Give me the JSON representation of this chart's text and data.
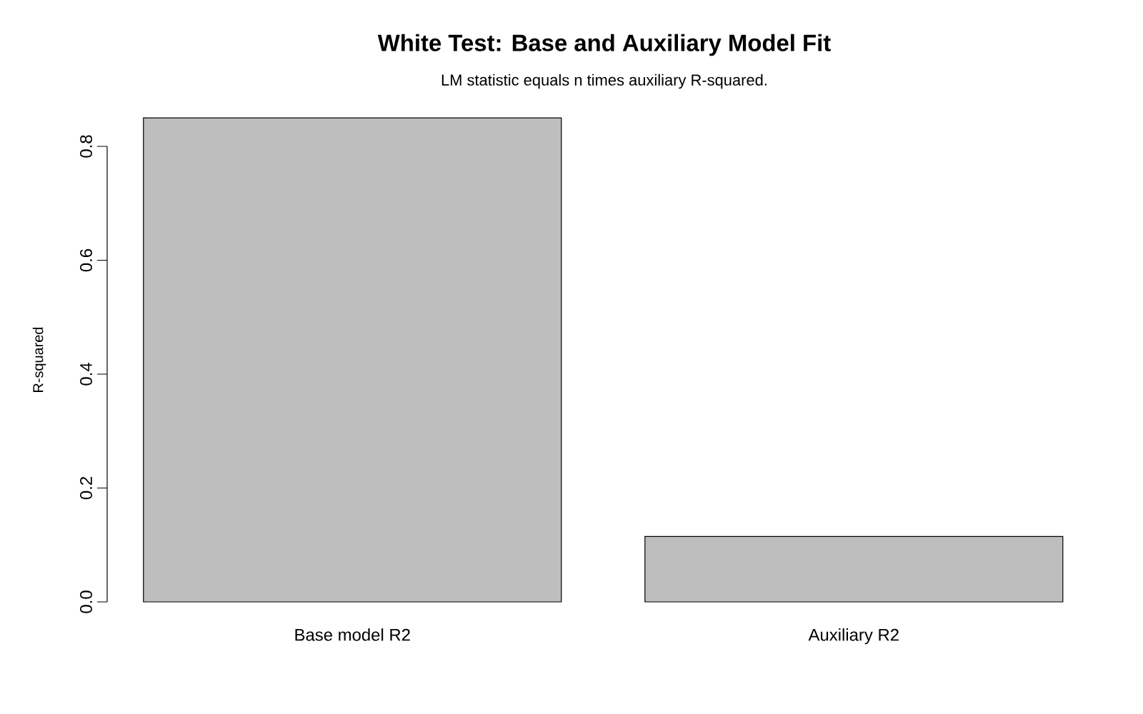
{
  "chart_data": {
    "type": "bar",
    "title": "White Test: Base and Auxiliary Model Fit",
    "subtitle": "LM statistic equals n times auxiliary R-squared.",
    "ylabel": "R-squared",
    "categories": [
      "Base model R2",
      "Auxiliary R2"
    ],
    "values": [
      0.85,
      0.115
    ],
    "color": "#bebebe",
    "ylim": [
      0,
      0.85
    ],
    "yticks": [
      {
        "value": 0,
        "label": "0.0"
      },
      0.2,
      0.4,
      0.6,
      0.8
    ],
    "grid": false
  }
}
